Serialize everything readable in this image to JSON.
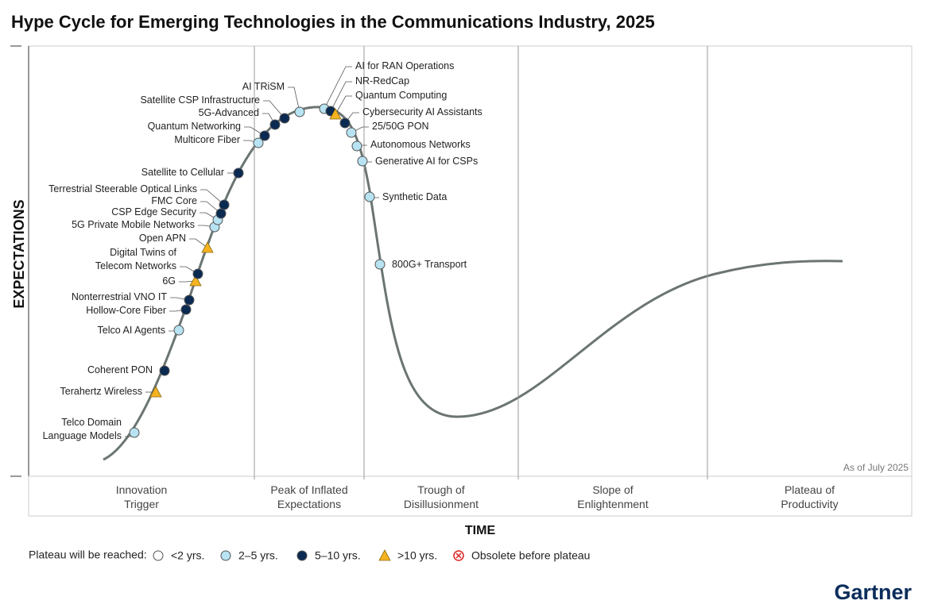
{
  "title": "Hype Cycle for Emerging Technologies in the Communications Industry, 2025",
  "y_axis_label": "EXPECTATIONS",
  "x_axis_label": "TIME",
  "note": "As of July 2025",
  "brand": "Gartner",
  "phases": [
    {
      "label": [
        "Innovation",
        "Trigger"
      ]
    },
    {
      "label": [
        "Peak of Inflated",
        "Expectations"
      ]
    },
    {
      "label": [
        "Trough of",
        "Disillusionment"
      ]
    },
    {
      "label": [
        "Slope of",
        "Enlightenment"
      ]
    },
    {
      "label": [
        "Plateau of",
        "Productivity"
      ]
    }
  ],
  "legend": {
    "title": "Plateau will be reached:",
    "items": [
      "<2 yrs.",
      "2–5 yrs.",
      "5–10 yrs.",
      ">10 yrs.",
      "Obsolete before plateau"
    ]
  },
  "technologies": [
    {
      "label": [
        "Telco Domain",
        "Language Models"
      ],
      "plateau": "2–5 yrs."
    },
    {
      "label": [
        "Terahertz Wireless"
      ],
      "plateau": ">10 yrs."
    },
    {
      "label": [
        "Coherent PON"
      ],
      "plateau": "5–10 yrs."
    },
    {
      "label": [
        "Telco AI Agents"
      ],
      "plateau": "2–5 yrs."
    },
    {
      "label": [
        "Hollow-Core Fiber"
      ],
      "plateau": "5–10 yrs."
    },
    {
      "label": [
        "Nonterrestrial VNO IT"
      ],
      "plateau": "5–10 yrs."
    },
    {
      "label": [
        "6G"
      ],
      "plateau": ">10 yrs."
    },
    {
      "label": [
        "Digital Twins of",
        "Telecom Networks"
      ],
      "plateau": "5–10 yrs."
    },
    {
      "label": [
        "Open APN"
      ],
      "plateau": ">10 yrs."
    },
    {
      "label": [
        "5G Private Mobile Networks"
      ],
      "plateau": "2–5 yrs."
    },
    {
      "label": [
        "CSP Edge Security"
      ],
      "plateau": "2–5 yrs."
    },
    {
      "label": [
        "FMC Core"
      ],
      "plateau": "5–10 yrs."
    },
    {
      "label": [
        "Terrestrial Steerable Optical Links"
      ],
      "plateau": "5–10 yrs."
    },
    {
      "label": [
        "Satellite to Cellular"
      ],
      "plateau": "5–10 yrs."
    },
    {
      "label": [
        "Multicore Fiber"
      ],
      "plateau": "2–5 yrs."
    },
    {
      "label": [
        "Quantum Networking"
      ],
      "plateau": "5–10 yrs."
    },
    {
      "label": [
        "5G-Advanced"
      ],
      "plateau": "5–10 yrs."
    },
    {
      "label": [
        "Satellite CSP Infrastructure"
      ],
      "plateau": "5–10 yrs."
    },
    {
      "label": [
        "AI TRiSM"
      ],
      "plateau": "2–5 yrs."
    },
    {
      "label": [
        "AI for RAN Operations"
      ],
      "plateau": "2–5 yrs."
    },
    {
      "label": [
        "NR-RedCap"
      ],
      "plateau": "5–10 yrs."
    },
    {
      "label": [
        "Quantum Computing"
      ],
      "plateau": ">10 yrs."
    },
    {
      "label": [
        "Cybersecurity AI Assistants"
      ],
      "plateau": "5–10 yrs."
    },
    {
      "label": [
        "25/50G PON"
      ],
      "plateau": "2–5 yrs."
    },
    {
      "label": [
        "Autonomous Networks"
      ],
      "plateau": "2–5 yrs."
    },
    {
      "label": [
        "Generative AI for CSPs"
      ],
      "plateau": "2–5 yrs."
    },
    {
      "label": [
        "Synthetic Data"
      ],
      "plateau": "2–5 yrs."
    },
    {
      "label": [
        "800G+ Transport"
      ],
      "plateau": "2–5 yrs."
    }
  ]
}
